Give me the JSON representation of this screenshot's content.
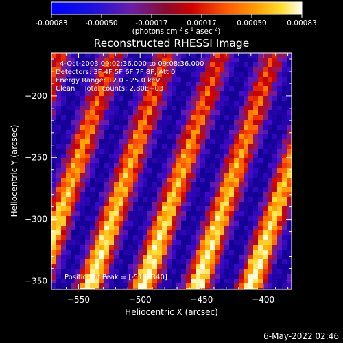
{
  "colorbar": {
    "ticks": [
      "-0.00083",
      "-0.00050",
      "-0.00017",
      "0.00017",
      "0.00050",
      "0.00083"
    ],
    "units_text": "(photons cm",
    "units_exp1": "-2",
    "units_mid1": " s",
    "units_exp2": "-1",
    "units_mid2": " asec",
    "units_exp3": "-2",
    "units_end": ")"
  },
  "chart_data": {
    "type": "heatmap",
    "title": "Reconstructed RHESSI Image",
    "xlabel": "Heliocentric X (arcsec)",
    "ylabel": "Heliocentric Y (arcsec)",
    "xlim": [
      -572,
      -377
    ],
    "ylim": [
      -357,
      -165
    ],
    "xticks": [
      -550,
      -500,
      -450,
      -400
    ],
    "yticks": [
      -200,
      -250,
      -300,
      -350
    ],
    "colorscale": "RHESSI color table (blue → purple → red → orange → yellow → white)",
    "value_range": [
      -0.00083,
      0.00083
    ],
    "pattern": "diagonal bright fringe stripes running from upper-right to lower-left, spacing ~38 arcsec",
    "peak": {
      "x": -518,
      "y": -340
    },
    "annotations": [
      "4-Oct-2003 09:02:36.000 to 09:08:36.000",
      "Detectors: 3F 4F 5F 6F 7F 8F, Att 0",
      "Energy Range: 12.0 - 25.0 keV",
      "Clean    Total counts: 2.80E+03",
      "Position of Peak = [-518,-340]"
    ]
  },
  "footer": {
    "date": "6-May-2022 02:46"
  },
  "colors": {
    "background": "#000000",
    "text": "#ffffff"
  }
}
